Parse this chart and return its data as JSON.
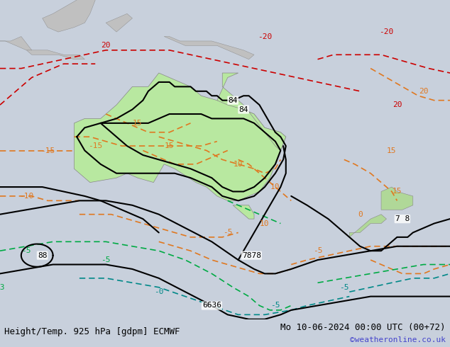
{
  "title_left": "Height/Temp. 925 hPa [gdpm] ECMWF",
  "title_right": "Mo 10-06-2024 00:00 UTC (00+72)",
  "credit": "©weatheronline.co.uk",
  "bg_color": "#d0d8e8",
  "land_color": "#c8c8c8",
  "australia_color": "#b8e8a0",
  "figure_bg": "#c8d0dc",
  "bottom_bar_color": "#e8e8e8",
  "title_fontsize": 9,
  "credit_color": "#4444cc"
}
